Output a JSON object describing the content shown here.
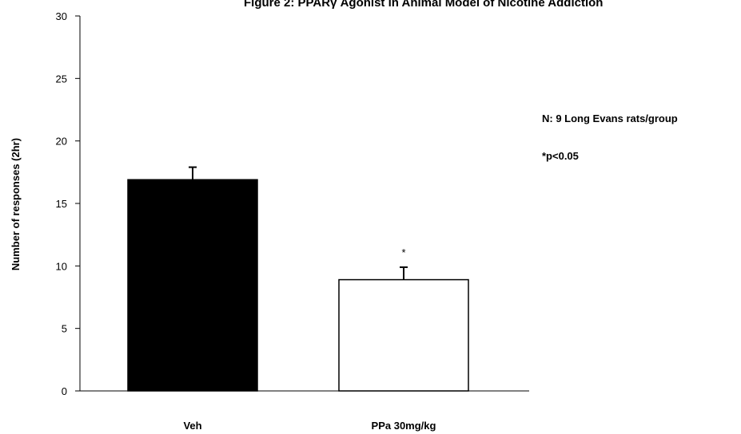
{
  "chart_data": {
    "type": "bar",
    "title": "Figure 2: PPARγ Agonist in Animal Model of Nicotine Addiction",
    "xlabel": "",
    "ylabel": "Number of responses (2hr)",
    "ylim": [
      0,
      30
    ],
    "yticks": [
      0,
      5,
      10,
      15,
      20,
      25,
      30
    ],
    "categories": [
      "Veh",
      "PPa 30mg/kg"
    ],
    "values": [
      16.9,
      8.9
    ],
    "errors": [
      1.0,
      1.0
    ],
    "bar_colors": [
      "#000000",
      "#ffffff"
    ],
    "significance": [
      "",
      "*"
    ],
    "annotations": [
      "N: 9 Long Evans rats/group",
      "*p<0.05"
    ],
    "grid": false,
    "legend": "none"
  }
}
